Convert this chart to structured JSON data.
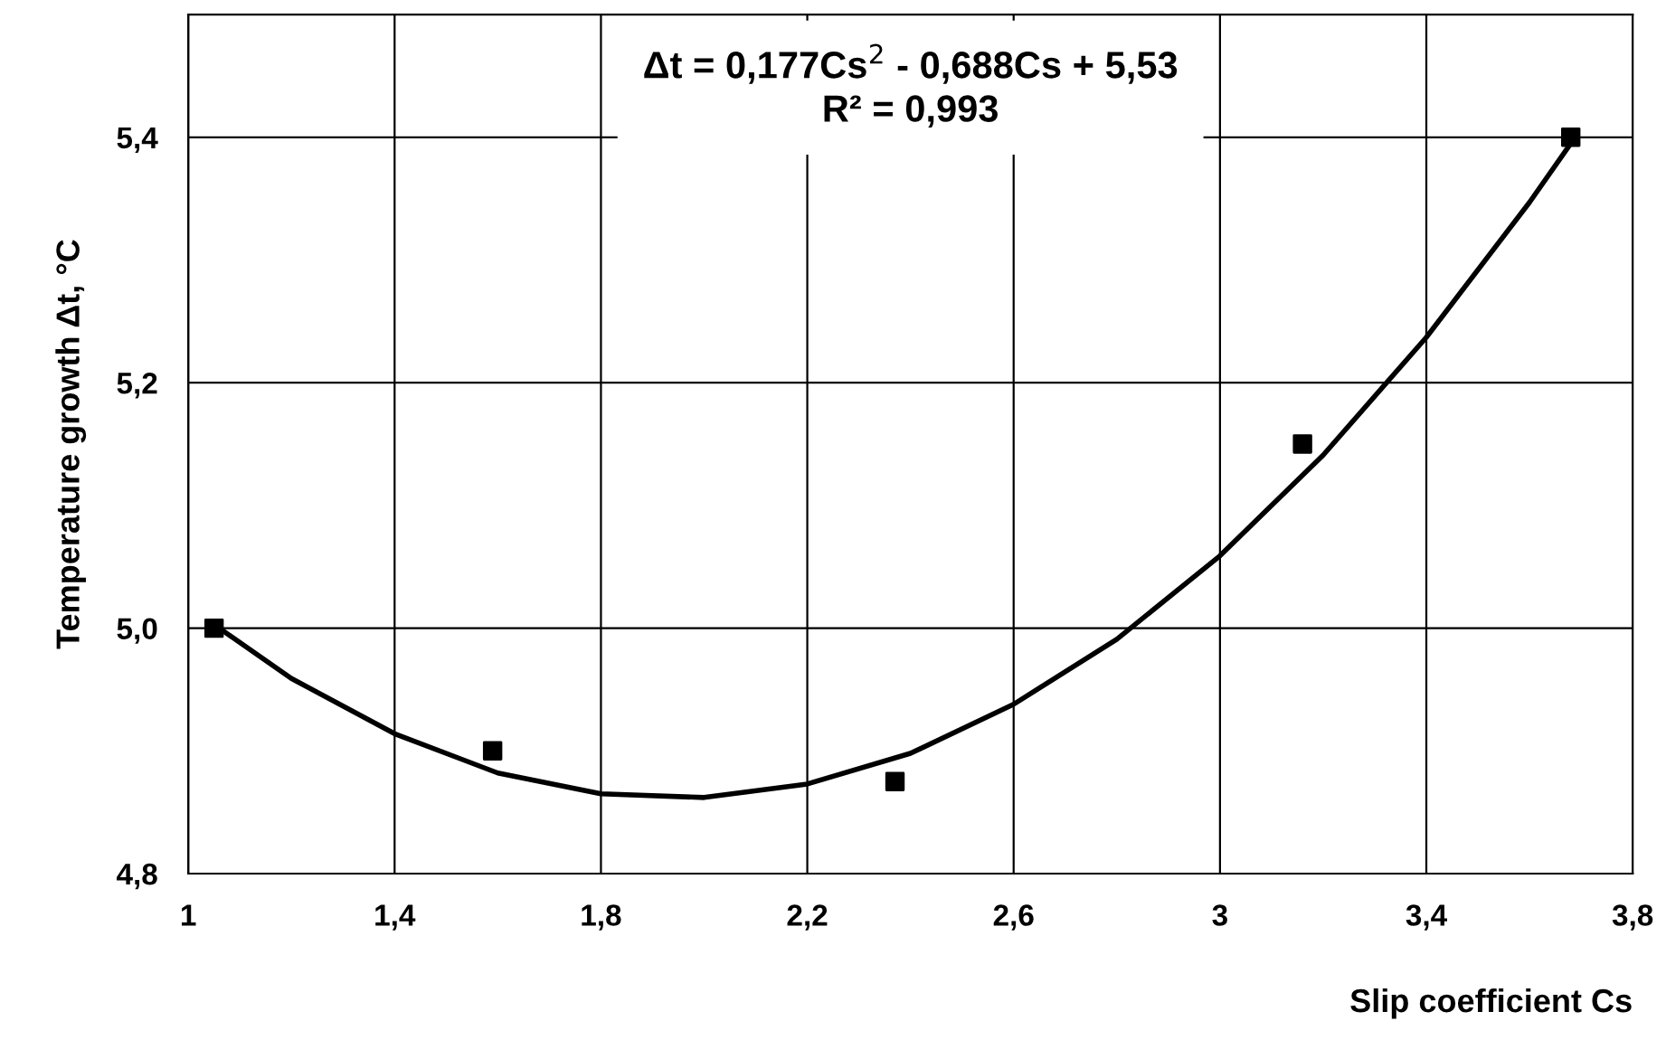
{
  "chart_data": {
    "type": "scatter",
    "xlabel": "Slip coefficient Cs",
    "ylabel": "Temperature growth Δt, °C",
    "annotations": [
      "Δt = 0,177Cs$^{2}$ - 0,688Cs + 5,53",
      "R² = 0,993"
    ],
    "series": [
      {
        "color": "#000000",
        "marker": "square",
        "x": [
          1.05,
          1.59,
          2.37,
          3.16,
          3.68
        ],
        "values": [
          5.0,
          4.9,
          4.875,
          5.15,
          5.4
        ]
      },
      {
        "type": "line",
        "color": "#000000",
        "marker": "none",
        "x": [
          1.05,
          1.2,
          1.4,
          1.6,
          1.8,
          2.0,
          2.2,
          2.4,
          2.6,
          2.8,
          3.0,
          3.2,
          3.4,
          3.6,
          3.68
        ],
        "values": [
          5.003,
          4.959,
          4.914,
          4.882,
          4.865,
          4.862,
          4.873,
          4.898,
          4.938,
          4.991,
          5.059,
          5.141,
          5.237,
          5.347,
          5.395
        ]
      }
    ],
    "xlim": [
      1,
      3.8
    ],
    "xticks": [
      1,
      {
        "value": 1.4,
        "label": "1,4"
      },
      {
        "value": 1.8,
        "label": "1,8"
      },
      {
        "value": 2.2,
        "label": "2,2"
      },
      {
        "value": 2.6,
        "label": "2,6"
      },
      3,
      {
        "value": 3.4,
        "label": "3,4"
      },
      {
        "value": 3.8,
        "label": "3,8"
      }
    ],
    "ylim": [
      4.8,
      5.5
    ],
    "yticks": [
      {
        "value": 4.8,
        "label": "4,8"
      },
      {
        "value": 5.0,
        "label": "5,0"
      },
      {
        "value": 5.2,
        "label": "5,2"
      },
      {
        "value": 5.4,
        "label": "5,4"
      }
    ],
    "grid": true
  }
}
